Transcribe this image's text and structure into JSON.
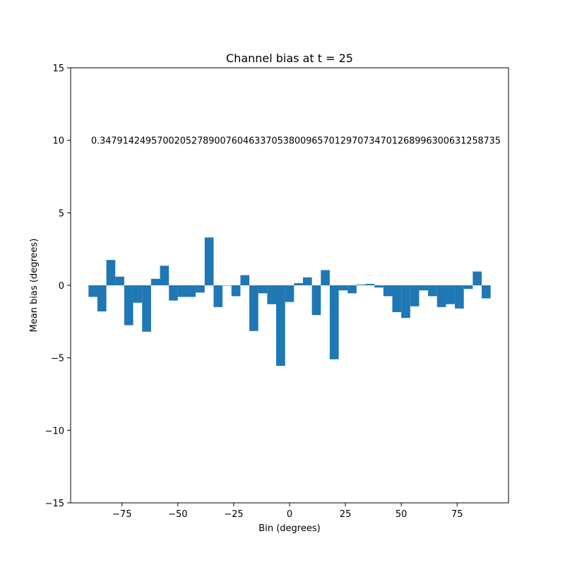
{
  "chart_data": {
    "type": "bar",
    "title": "Channel bias at t = 25",
    "xlabel": "Bin (degrees)",
    "ylabel": "Mean bias (degrees)",
    "xlim": [
      -98,
      98
    ],
    "ylim": [
      -15,
      15
    ],
    "xticks": [
      -75,
      -50,
      -25,
      0,
      25,
      50,
      75
    ],
    "xtick_labels": [
      "−75",
      "−50",
      "−25",
      "0",
      "25",
      "50",
      "75"
    ],
    "yticks": [
      -15,
      -10,
      -5,
      0,
      5,
      10,
      15
    ],
    "ytick_labels": [
      "−15",
      "−10",
      "−5",
      "0",
      "5",
      "10",
      "15"
    ],
    "bar_color": "#1f77b4",
    "bin_width": 4,
    "annotation_y": 10,
    "annotation_text": "0.3479142495700205278900760463370538009657012970734701268996300631258735",
    "x": [
      -88,
      -84,
      -80,
      -76,
      -72,
      -68,
      -64,
      -60,
      -56,
      -52,
      -48,
      -44,
      -40,
      -36,
      -32,
      -28,
      -24,
      -20,
      -16,
      -12,
      -8,
      -4,
      0,
      4,
      8,
      12,
      16,
      20,
      24,
      28,
      32,
      36,
      40,
      44,
      48,
      52,
      56,
      60,
      64,
      68,
      72,
      76,
      80,
      84,
      88
    ],
    "values": [
      -0.8,
      -1.8,
      1.75,
      0.6,
      -2.75,
      -1.2,
      -3.2,
      0.45,
      1.35,
      -1.05,
      -0.8,
      -0.8,
      -0.5,
      3.3,
      -1.5,
      0.0,
      -0.75,
      0.7,
      -3.15,
      -0.55,
      -1.3,
      -5.55,
      -1.15,
      0.15,
      0.55,
      -2.05,
      1.05,
      -5.1,
      -0.35,
      -0.55,
      0.05,
      0.1,
      -0.15,
      -0.75,
      -1.85,
      -2.25,
      -1.45,
      -0.35,
      -0.75,
      -1.5,
      -1.3,
      -1.6,
      -0.25,
      0.95,
      -0.9
    ]
  }
}
